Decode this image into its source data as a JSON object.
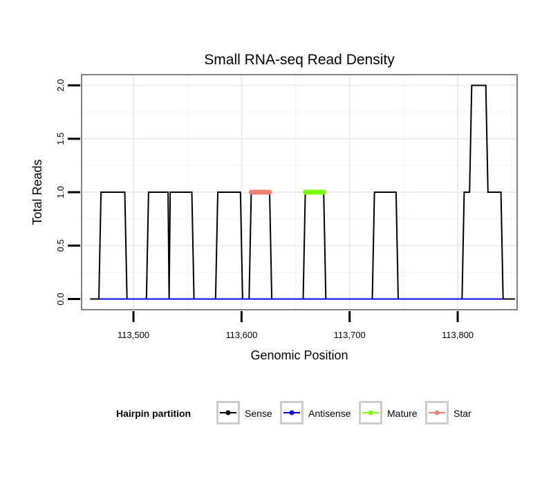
{
  "chart_data": {
    "type": "line",
    "title": "Small RNA-seq Read Density",
    "xlabel": "Genomic Position",
    "ylabel": "Total Reads",
    "xlim": [
      113452,
      113855
    ],
    "ylim": [
      -0.1,
      2.1
    ],
    "x_ticks": [
      113500,
      113600,
      113700,
      113800
    ],
    "x_tick_labels": [
      "113,500",
      "113,600",
      "113,700",
      "113,800"
    ],
    "y_ticks": [
      0,
      0.5,
      1,
      1.5,
      2
    ],
    "y_tick_labels": [
      "0.0",
      "0.5",
      "1.0",
      "1.5",
      "2.0"
    ],
    "grid": true,
    "legend_title": "Hairpin partition",
    "legend_position": "bottom",
    "series": [
      {
        "name": "Sense",
        "color": "#000000",
        "points": [
          [
            113460,
            0
          ],
          [
            113468,
            0
          ],
          [
            113470,
            1
          ],
          [
            113492,
            1
          ],
          [
            113494,
            0
          ],
          [
            113512,
            0
          ],
          [
            113514,
            1
          ],
          [
            113532,
            1
          ],
          [
            113533,
            0
          ],
          [
            113534,
            1
          ],
          [
            113554,
            1
          ],
          [
            113556,
            0
          ],
          [
            113576,
            0
          ],
          [
            113578,
            1
          ],
          [
            113599,
            1
          ],
          [
            113601,
            0
          ],
          [
            113607,
            0
          ],
          [
            113609,
            1
          ],
          [
            113626,
            1
          ],
          [
            113628,
            0
          ],
          [
            113657,
            0
          ],
          [
            113659,
            1
          ],
          [
            113676,
            1
          ],
          [
            113678,
            0
          ],
          [
            113721,
            0
          ],
          [
            113723,
            1
          ],
          [
            113743,
            1
          ],
          [
            113745,
            0
          ],
          [
            113804,
            0
          ],
          [
            113806,
            1
          ],
          [
            113811,
            1
          ],
          [
            113813,
            2
          ],
          [
            113826,
            2
          ],
          [
            113828,
            1
          ],
          [
            113840,
            1
          ],
          [
            113842,
            0
          ],
          [
            113853,
            0
          ]
        ]
      },
      {
        "name": "Antisense",
        "color": "#0000ff",
        "points": [
          [
            113468,
            0
          ],
          [
            113494,
            0
          ],
          [
            113512,
            0
          ],
          [
            113556,
            0
          ],
          [
            113578,
            0
          ],
          [
            113601,
            0
          ],
          [
            113607,
            0
          ],
          [
            113628,
            0
          ],
          [
            113657,
            0
          ],
          [
            113678,
            0
          ],
          [
            113723,
            0
          ],
          [
            113745,
            0
          ],
          [
            113804,
            0
          ],
          [
            113842,
            0
          ]
        ]
      },
      {
        "name": "Mature",
        "color": "#7cfc00",
        "points": [
          [
            113659,
            1
          ],
          [
            113676,
            1
          ]
        ]
      },
      {
        "name": "Star",
        "color": "#f08070",
        "points": [
          [
            113609,
            1
          ],
          [
            113626,
            1
          ]
        ]
      }
    ]
  }
}
